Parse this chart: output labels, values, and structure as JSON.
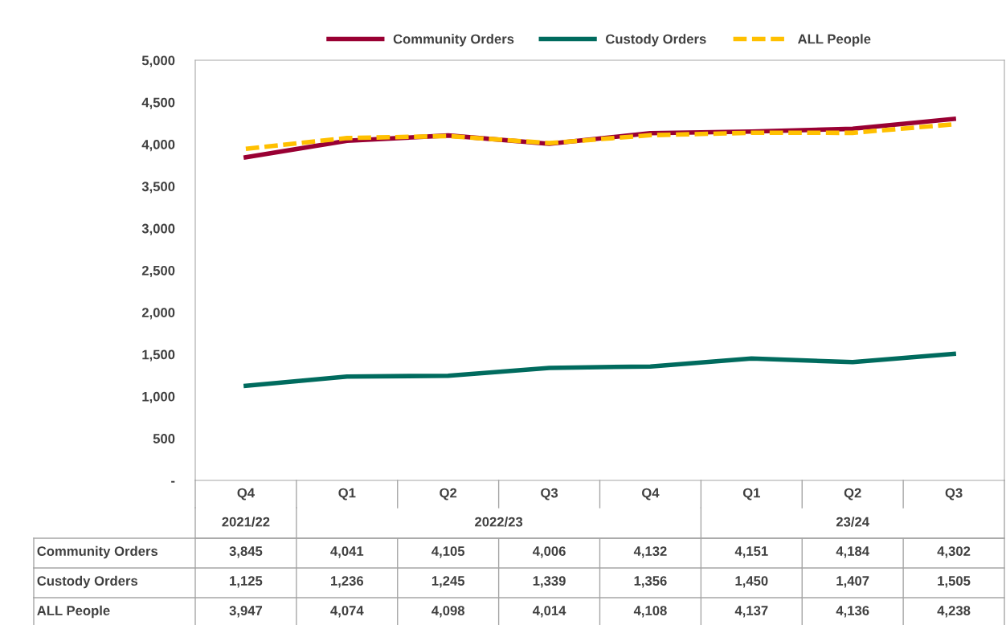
{
  "chart_data": {
    "type": "line",
    "categories": [
      "Q4",
      "Q1",
      "Q2",
      "Q3",
      "Q4",
      "Q1",
      "Q2",
      "Q3"
    ],
    "annotations": [
      "2021/22",
      "2022/23",
      "23/24"
    ],
    "series": [
      {
        "name": "Community Orders",
        "color": "#990033",
        "values": [
          3845,
          4041,
          4105,
          4006,
          4132,
          4151,
          4184,
          4302
        ],
        "value_labels": [
          "3,845",
          "4,041",
          "4,105",
          "4,006",
          "4,132",
          "4,151",
          "4,184",
          "4,302"
        ]
      },
      {
        "name": "Custody Orders",
        "color": "#006b5e",
        "values": [
          1125,
          1236,
          1245,
          1339,
          1356,
          1450,
          1407,
          1505
        ],
        "value_labels": [
          "1,125",
          "1,236",
          "1,245",
          "1,339",
          "1,356",
          "1,450",
          "1,407",
          "1,505"
        ]
      },
      {
        "name": "ALL People",
        "color": "#ffc000",
        "line_style": "dashed",
        "values": [
          3947,
          4074,
          4098,
          4014,
          4108,
          4137,
          4136,
          4238
        ],
        "value_labels": [
          "3,947",
          "4,074",
          "4,098",
          "4,014",
          "4,108",
          "4,137",
          "4,136",
          "4,238"
        ]
      }
    ],
    "ylim": [
      0,
      5000
    ],
    "yticks": [
      {
        "value": 0,
        "label": "-"
      },
      500,
      {
        "value": 1000,
        "label": "1,000"
      },
      {
        "value": 1500,
        "label": "1,500"
      },
      {
        "value": 2000,
        "label": "2,000"
      },
      {
        "value": 2500,
        "label": "2,500"
      },
      {
        "value": 3000,
        "label": "3,000"
      },
      {
        "value": 3500,
        "label": "3,500"
      },
      {
        "value": 4000,
        "label": "4,000"
      },
      {
        "value": 4500,
        "label": "4,500"
      },
      {
        "value": 5000,
        "label": "5,000"
      }
    ],
    "grid": false,
    "legend": "top",
    "marker": "none"
  }
}
